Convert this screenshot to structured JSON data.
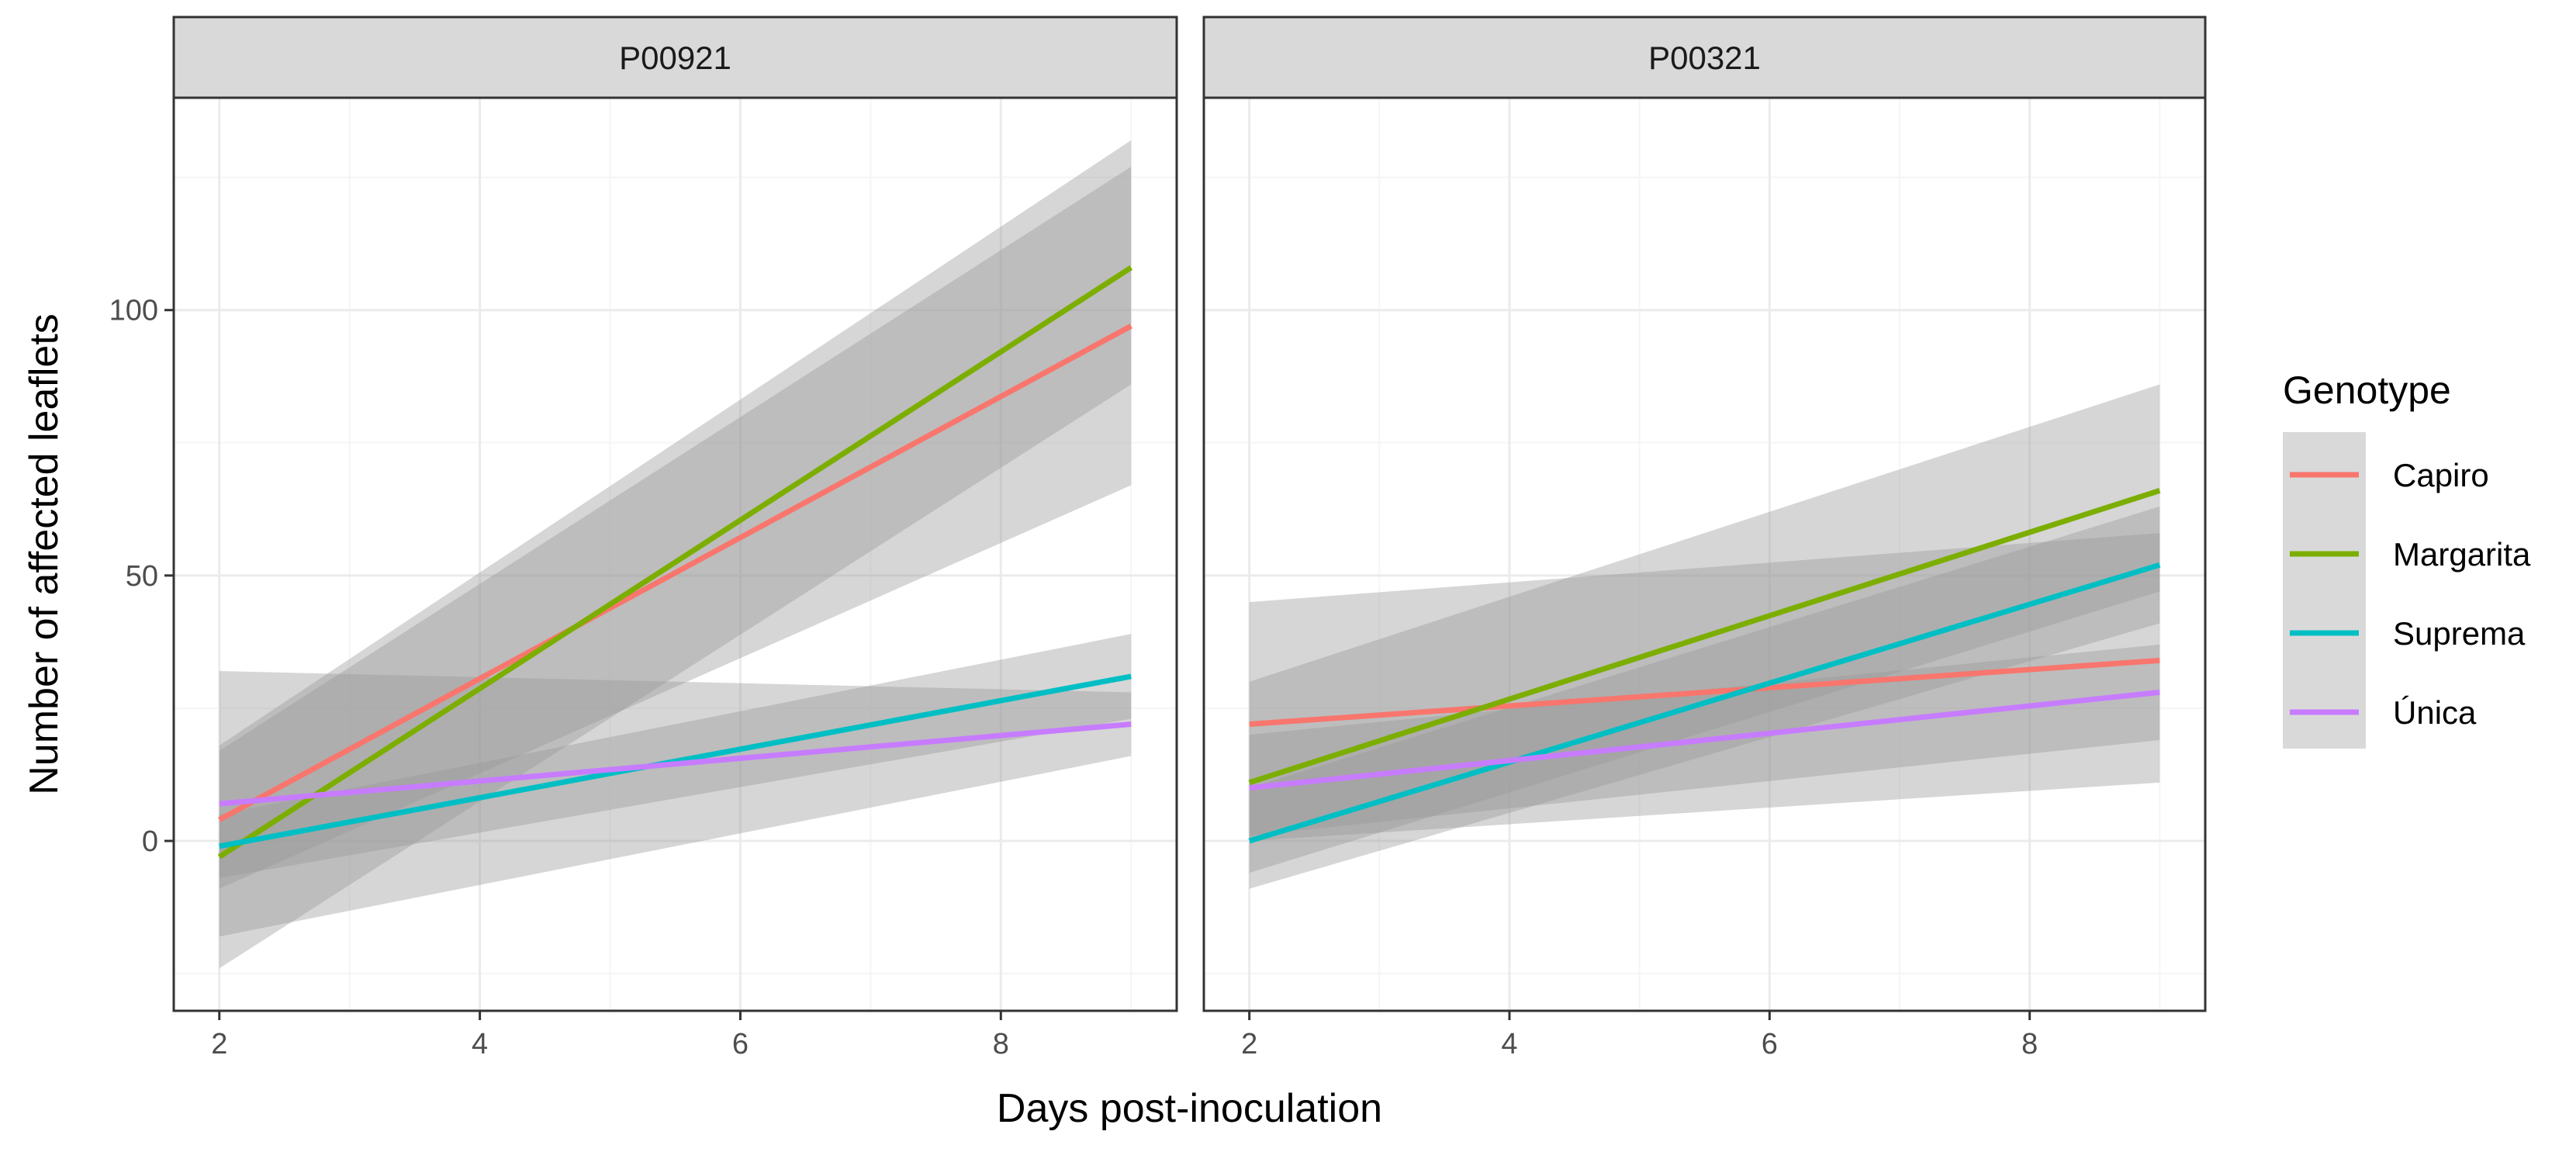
{
  "chart_data": {
    "type": "line",
    "title": "",
    "xlabel": "Days post-inoculation",
    "ylabel": "Number of affected leaflets",
    "xlim": [
      1.65,
      9.35
    ],
    "ylim": [
      -32,
      140
    ],
    "x_ticks": [
      2,
      4,
      6,
      8
    ],
    "y_ticks": [
      0,
      50,
      100
    ],
    "x_tick_labels": [
      "2",
      "4",
      "6",
      "8"
    ],
    "y_tick_labels": [
      "0",
      "50",
      "100"
    ],
    "grid": true,
    "legend": {
      "title": "Genotype",
      "position": "right",
      "entries": [
        "Capiro",
        "Margarita",
        "Suprema",
        "Única"
      ]
    },
    "colors": {
      "Capiro": "#F8766D",
      "Margarita": "#7CAE00",
      "Suprema": "#00BFC4",
      "Única": "#C77CFF",
      "ribbon": "#999999",
      "strip_bg": "#D9D9D9",
      "grid_major": "#EBEBEB",
      "grid_minor": "#F5F5F5",
      "panel_border": "#333333"
    },
    "panels": [
      {
        "strip": "P00921",
        "series": [
          {
            "name": "Capiro",
            "x": [
              2,
              9
            ],
            "y": [
              4,
              97
            ],
            "lower": [
              -9,
              67
            ],
            "upper": [
              17,
              127
            ]
          },
          {
            "name": "Margarita",
            "x": [
              2,
              9
            ],
            "y": [
              -3,
              108
            ],
            "lower": [
              -24,
              86
            ],
            "upper": [
              18,
              132
            ]
          },
          {
            "name": "Suprema",
            "x": [
              2,
              9
            ],
            "y": [
              -1,
              31
            ],
            "lower": [
              -7,
              23
            ],
            "upper": [
              5,
              39
            ]
          },
          {
            "name": "Única",
            "x": [
              2,
              9
            ],
            "y": [
              7,
              22
            ],
            "lower": [
              -18,
              16
            ],
            "upper": [
              32,
              28
            ]
          }
        ]
      },
      {
        "strip": "P00321",
        "series": [
          {
            "name": "Capiro",
            "x": [
              2,
              9
            ],
            "y": [
              22,
              34
            ],
            "lower": [
              0,
              11
            ],
            "upper": [
              45,
              58
            ]
          },
          {
            "name": "Margarita",
            "x": [
              2,
              9
            ],
            "y": [
              11,
              66
            ],
            "lower": [
              -6,
              47
            ],
            "upper": [
              30,
              86
            ]
          },
          {
            "name": "Suprema",
            "x": [
              2,
              9
            ],
            "y": [
              0,
              52
            ],
            "lower": [
              -9,
              41
            ],
            "upper": [
              10,
              63
            ]
          },
          {
            "name": "Única",
            "x": [
              2,
              9
            ],
            "y": [
              10,
              28
            ],
            "lower": [
              1,
              19
            ],
            "upper": [
              20,
              37
            ]
          }
        ]
      }
    ]
  }
}
